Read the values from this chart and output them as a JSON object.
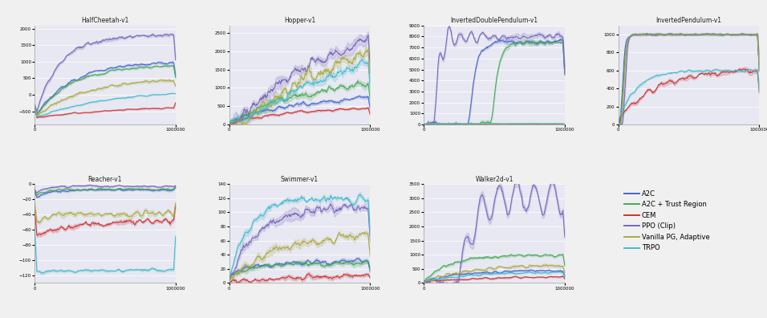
{
  "algorithms": [
    "A2C",
    "A2C + Trust Region",
    "CEM",
    "PPO (Clip)",
    "Vanilla PG, Adaptive",
    "TRPO"
  ],
  "colors": {
    "A2C": "#4466cc",
    "A2C + Trust Region": "#44aa55",
    "CEM": "#cc3333",
    "PPO (Clip)": "#7766bb",
    "Vanilla PG, Adaptive": "#aaaa44",
    "TRPO": "#44bbcc"
  },
  "tasks": [
    "HalfCheetah-v1",
    "Hopper-v1",
    "InvertedDoublePendulum-v1",
    "InvertedPendulum-v1",
    "Reacher-v1",
    "Swimmer-v1",
    "Walker2d-v1"
  ],
  "background_color": "#e8e8f2",
  "figure_background": "#f0f0f0",
  "task_ylims": {
    "HalfCheetah-v1": [
      -900,
      2100
    ],
    "Hopper-v1": [
      0,
      2700
    ],
    "InvertedDoublePendulum-v1": [
      0,
      9000
    ],
    "InvertedPendulum-v1": [
      0,
      1100
    ],
    "Reacher-v1": [
      -130,
      0
    ],
    "Swimmer-v1": [
      0,
      140
    ],
    "Walker2d-v1": [
      0,
      3500
    ]
  }
}
